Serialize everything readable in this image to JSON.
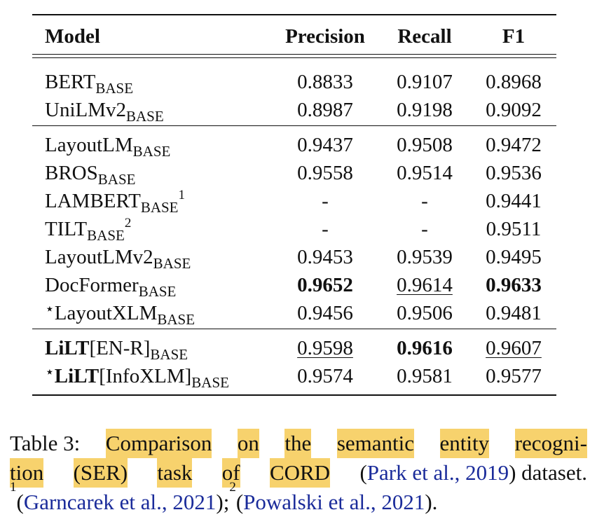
{
  "table": {
    "header": {
      "model": "Model",
      "precision": "Precision",
      "recall": "Recall",
      "f1": "F1"
    },
    "groups": [
      [
        {
          "name": "BERT",
          "sub": "BASE",
          "sup": "",
          "star": "",
          "name_bold": false,
          "suffix": "",
          "precision": "0.8833",
          "recall": "0.9107",
          "f1": "0.8968"
        },
        {
          "name": "UniLMv2",
          "sub": "BASE",
          "sup": "",
          "star": "",
          "name_bold": false,
          "suffix": "",
          "precision": "0.8987",
          "recall": "0.9198",
          "f1": "0.9092"
        }
      ],
      [
        {
          "name": "LayoutLM",
          "sub": "BASE",
          "sup": "",
          "star": "",
          "name_bold": false,
          "suffix": "",
          "precision": "0.9437",
          "recall": "0.9508",
          "f1": "0.9472"
        },
        {
          "name": "BROS",
          "sub": "BASE",
          "sup": "",
          "star": "",
          "name_bold": false,
          "suffix": "",
          "precision": "0.9558",
          "recall": "0.9514",
          "f1": "0.9536"
        },
        {
          "name": "LAMBERT",
          "sub": "BASE",
          "sup": "1",
          "star": "",
          "name_bold": false,
          "suffix": "",
          "precision": "-",
          "recall": "-",
          "f1": "0.9441"
        },
        {
          "name": "TILT",
          "sub": "BASE",
          "sup": "2",
          "star": "",
          "name_bold": false,
          "suffix": "",
          "precision": "-",
          "recall": "-",
          "f1": "0.9511"
        },
        {
          "name": "LayoutLMv2",
          "sub": "BASE",
          "sup": "",
          "star": "",
          "name_bold": false,
          "suffix": "",
          "precision": "0.9453",
          "recall": "0.9539",
          "f1": "0.9495"
        },
        {
          "name": "DocFormer",
          "sub": "BASE",
          "sup": "",
          "star": "",
          "name_bold": false,
          "suffix": "",
          "precision": "0.9652",
          "recall": "0.9614",
          "f1": "0.9633",
          "precision_style": "bold",
          "recall_style": "underline",
          "f1_style": "bold"
        },
        {
          "name": "LayoutXLM",
          "sub": "BASE",
          "sup": "",
          "star": "⋆",
          "name_bold": false,
          "suffix": "",
          "precision": "0.9456",
          "recall": "0.9506",
          "f1": "0.9481"
        }
      ],
      [
        {
          "name": "LiLT",
          "sub": "BASE",
          "sup": "",
          "star": "",
          "name_bold": true,
          "suffix": "[EN-R]",
          "precision": "0.9598",
          "recall": "0.9616",
          "f1": "0.9607",
          "precision_style": "underline",
          "recall_style": "bold",
          "f1_style": "underline"
        },
        {
          "name": "LiLT",
          "sub": "BASE",
          "sup": "",
          "star": "⋆",
          "name_bold": true,
          "suffix": "[InfoXLM]",
          "precision": "0.9574",
          "recall": "0.9581",
          "f1": "0.9577"
        }
      ]
    ]
  },
  "caption": {
    "label": "Table 3:",
    "line1_highlight_words": [
      "Comparison",
      "on",
      "the",
      "semantic",
      "entity",
      "recogni-"
    ],
    "line2_highlight_words": [
      "tion",
      "(SER)",
      "task",
      "of",
      "CORD"
    ],
    "line2_rest": [
      {
        "text": "(",
        "cite": false
      },
      {
        "text": "Park et al., 2019",
        "cite": true
      },
      {
        "text": ") dataset.",
        "cite": false
      }
    ],
    "fn1_mark": "1",
    "fn1_cite": "Garncarek et al., 2021",
    "fn_sep": ");",
    "fn2_mark": "2",
    "fn2_cite": "Powalski et al., 2021",
    "fn_end": ")."
  },
  "colors": {
    "highlight": "#f7d26d",
    "citation": "#1a2b9a",
    "text": "#111111"
  }
}
